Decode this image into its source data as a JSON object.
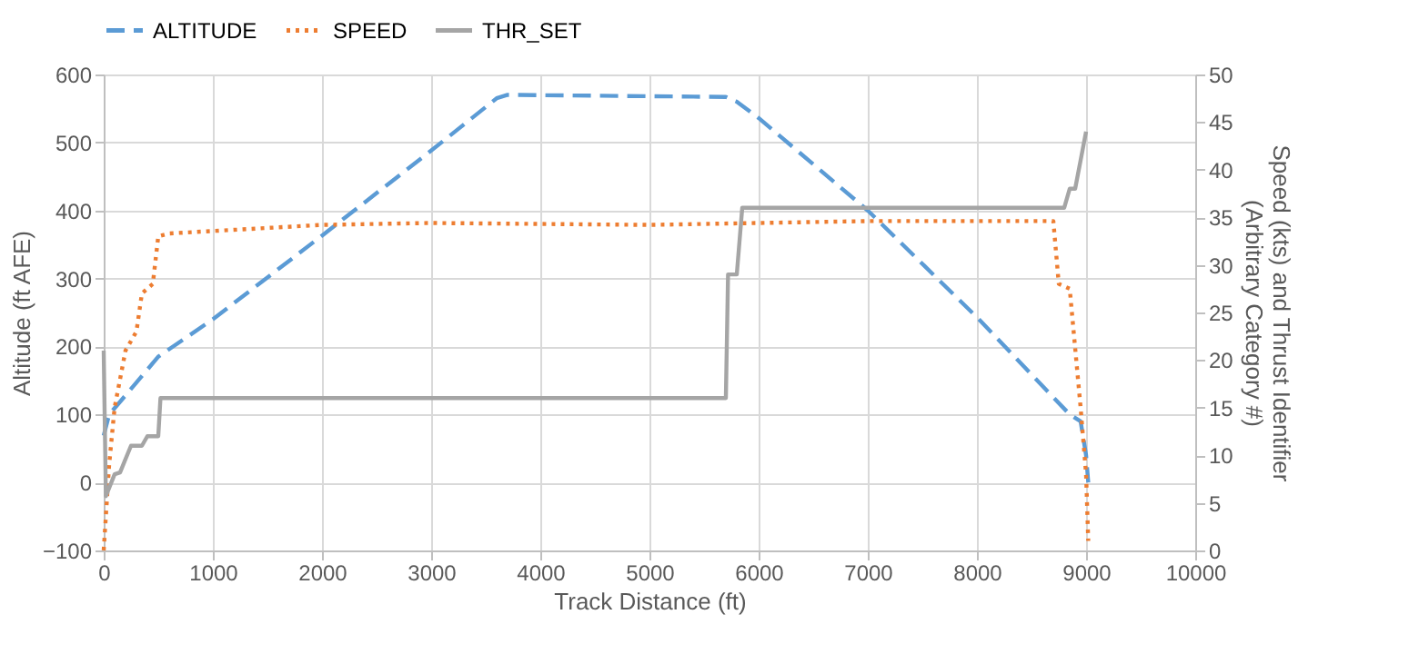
{
  "chart_data": {
    "type": "line",
    "xlabel": "Track Distance (ft)",
    "ylabel": "Altitude (ft AFE)",
    "y2label": "Speed (kts) and Thrust Identifier (Arbitrary Category #)",
    "xlim": [
      0,
      10000
    ],
    "xticks": [
      0,
      1000,
      2000,
      3000,
      4000,
      5000,
      6000,
      7000,
      8000,
      9000,
      10000
    ],
    "ylim": [
      -100,
      600
    ],
    "yticks": [
      -100,
      0,
      100,
      200,
      300,
      400,
      500,
      600
    ],
    "y2lim": [
      0,
      50
    ],
    "y2ticks": [
      0,
      5,
      10,
      15,
      20,
      25,
      30,
      35,
      40,
      45,
      50
    ],
    "grid": true,
    "legend": "top",
    "marker": "none",
    "series": [
      {
        "name": "ALTITUDE",
        "color": "#5b9bd5",
        "line_style": "dashed",
        "x": [
          0,
          50,
          200,
          500,
          1000,
          2000,
          3000,
          3600,
          3700,
          5700,
          5800,
          6000,
          7000,
          8000,
          8850,
          8950,
          9000,
          9020
        ],
        "values": [
          69,
          100,
          128,
          185,
          240,
          363,
          488,
          565,
          570,
          567,
          560,
          536,
          400,
          243,
          100,
          90,
          40,
          0
        ]
      },
      {
        "name": "SPEED",
        "color": "#ed7d31",
        "line_style": "dotted",
        "axis": "y2",
        "x": [
          0,
          50,
          100,
          200,
          300,
          350,
          450,
          500,
          600,
          2000,
          3000,
          5000,
          7000,
          8700,
          8750,
          8850,
          8950,
          9000,
          9020
        ],
        "values": [
          0,
          9,
          15,
          21,
          23,
          27,
          28,
          33,
          33.3,
          34.2,
          34.4,
          34.2,
          34.6,
          34.6,
          28,
          27.5,
          15,
          8,
          1
        ]
      },
      {
        "name": "THR_SET",
        "color": "#a5a5a5",
        "line_style": "solid",
        "axis": "y2",
        "x": [
          0,
          20,
          100,
          150,
          250,
          350,
          400,
          500,
          520,
          5700,
          5720,
          5800,
          5850,
          8800,
          8850,
          8900,
          8950,
          9000
        ],
        "values": [
          21,
          5.7,
          8,
          8.2,
          11,
          11,
          12,
          12,
          16,
          16,
          29,
          29,
          36,
          36,
          38,
          38,
          41,
          44
        ]
      }
    ]
  }
}
